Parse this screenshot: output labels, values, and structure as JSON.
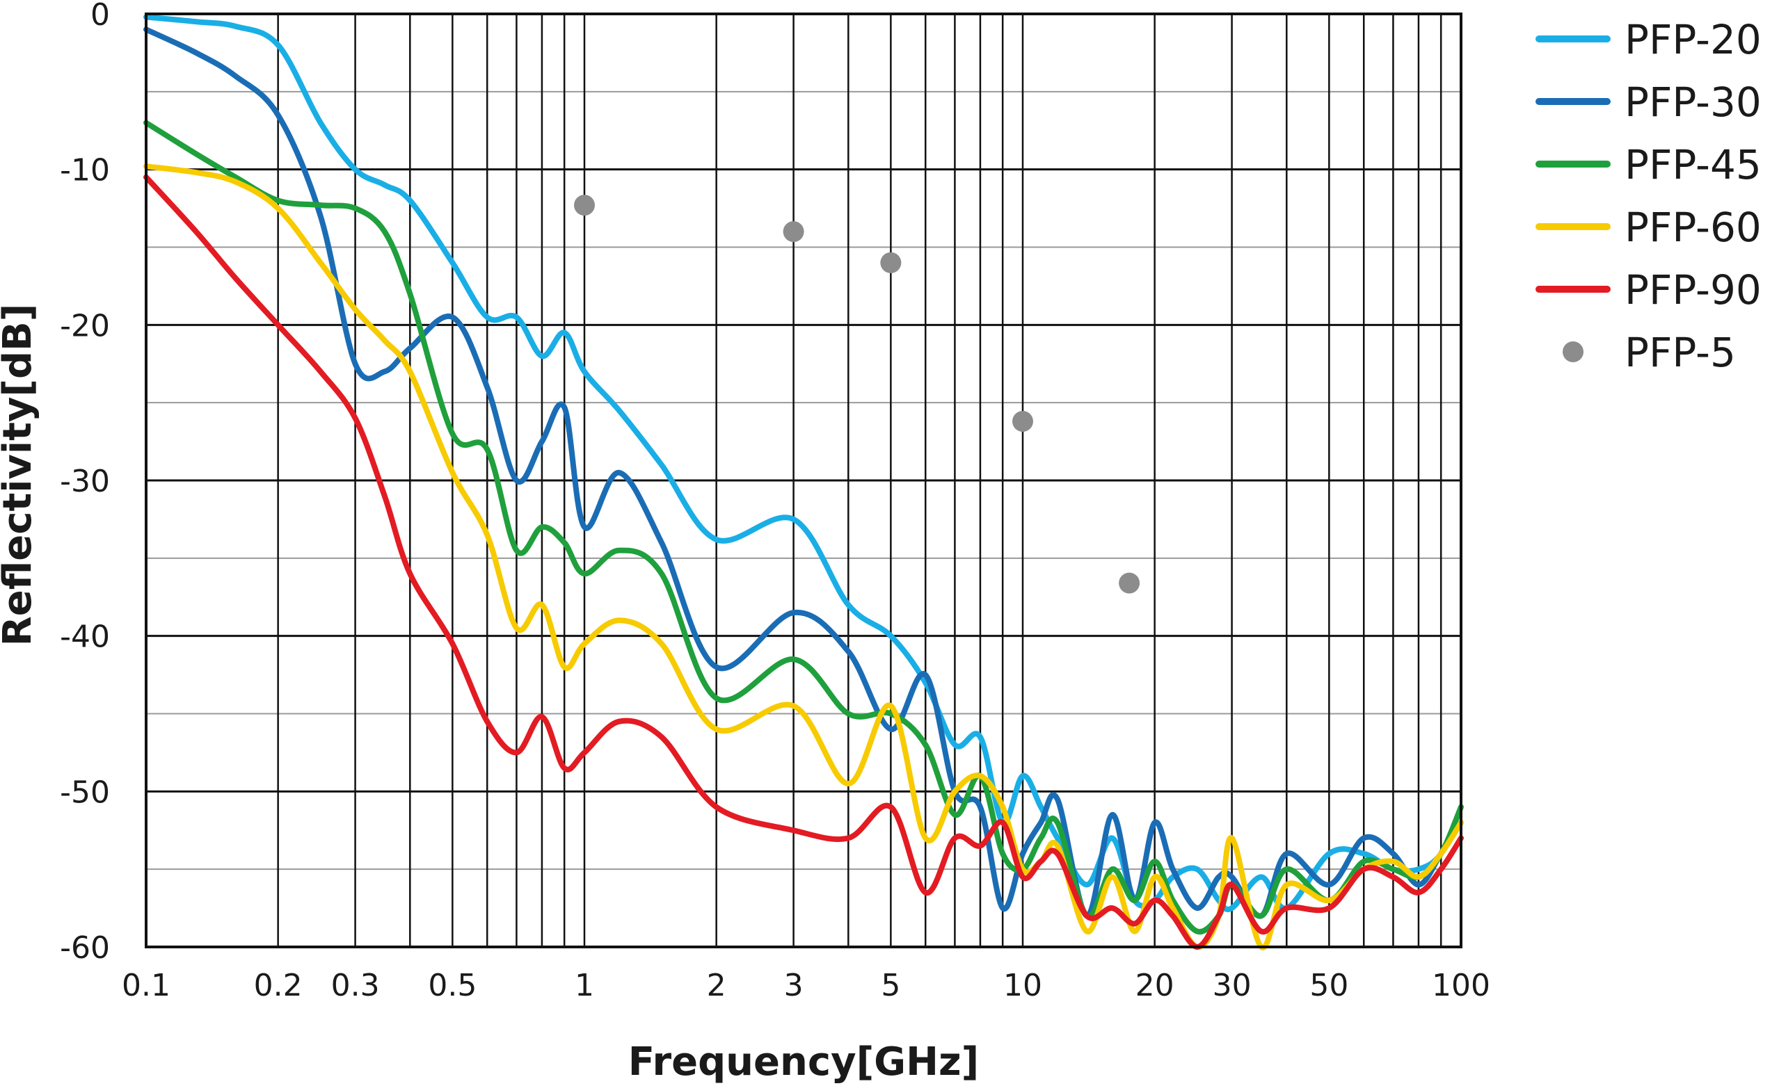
{
  "chart_data": {
    "type": "line",
    "xlabel": "Frequency[GHz]",
    "ylabel": "Reflectivity[dB]",
    "x_scale": "log",
    "xlim": [
      0.1,
      100
    ],
    "ylim": [
      -60,
      0
    ],
    "grid": true,
    "legend_position": "right",
    "x_tick_labels": [
      "0.1",
      "0.2",
      "0.3",
      "0.5",
      "1",
      "2",
      "3",
      "5",
      "10",
      "20",
      "30",
      "50",
      "100"
    ],
    "y_tick_labels": [
      "0",
      "-10",
      "-20",
      "-30",
      "-40",
      "-50",
      "-60"
    ],
    "series": [
      {
        "name": "PFP-20",
        "color": "#1aaee6",
        "style": "line",
        "x": [
          0.1,
          0.13,
          0.16,
          0.2,
          0.25,
          0.3,
          0.35,
          0.4,
          0.5,
          0.6,
          0.7,
          0.8,
          0.9,
          1,
          1.2,
          1.5,
          2,
          3,
          4,
          5,
          6,
          7,
          8,
          9,
          10,
          11,
          12,
          14,
          16,
          18,
          20,
          22,
          25,
          28,
          30,
          35,
          40,
          50,
          60,
          70,
          80,
          90,
          100
        ],
        "y": [
          -0.2,
          -0.5,
          -0.8,
          -2,
          -7,
          -10,
          -11,
          -12,
          -16,
          -19.5,
          -19.5,
          -22,
          -20.5,
          -23,
          -25.5,
          -29,
          -33.8,
          -32.5,
          -38,
          -40,
          -43,
          -47,
          -46.5,
          -52,
          -49,
          -51,
          -53,
          -56,
          -53,
          -57,
          -57,
          -55.5,
          -55,
          -57,
          -57.5,
          -55.5,
          -57.5,
          -54,
          -54,
          -55,
          -55,
          -54,
          -51
        ]
      },
      {
        "name": "PFP-30",
        "color": "#1a6db5",
        "style": "line",
        "x": [
          0.1,
          0.13,
          0.16,
          0.2,
          0.25,
          0.3,
          0.35,
          0.4,
          0.5,
          0.6,
          0.7,
          0.8,
          0.9,
          1,
          1.2,
          1.5,
          2,
          3,
          4,
          5,
          6,
          7,
          8,
          9,
          10,
          11,
          12,
          14,
          16,
          18,
          20,
          22,
          25,
          28,
          30,
          35,
          40,
          50,
          60,
          70,
          80,
          90,
          100
        ],
        "y": [
          -1,
          -2.5,
          -4,
          -6.5,
          -13,
          -22.5,
          -23,
          -21.5,
          -19.5,
          -24,
          -30,
          -27.5,
          -25.3,
          -33,
          -29.5,
          -34,
          -42,
          -38.5,
          -41,
          -46,
          -42.5,
          -50,
          -51,
          -57.5,
          -54,
          -52,
          -50.5,
          -58,
          -51.5,
          -57,
          -52,
          -55,
          -57.5,
          -55.5,
          -55.5,
          -58,
          -54,
          -56,
          -53,
          -54,
          -56,
          -54,
          -52
        ]
      },
      {
        "name": "PFP-45",
        "color": "#1fa03c",
        "style": "line",
        "x": [
          0.1,
          0.13,
          0.16,
          0.2,
          0.25,
          0.3,
          0.35,
          0.4,
          0.5,
          0.6,
          0.7,
          0.8,
          0.9,
          1,
          1.2,
          1.5,
          2,
          3,
          4,
          5,
          6,
          7,
          8,
          9,
          10,
          11,
          12,
          14,
          16,
          18,
          20,
          22,
          25,
          28,
          30,
          35,
          40,
          50,
          60,
          70,
          80,
          90,
          100
        ],
        "y": [
          -7,
          -9,
          -10.5,
          -12,
          -12.3,
          -12.5,
          -14,
          -18,
          -27,
          -28,
          -34.5,
          -33,
          -34,
          -36,
          -34.5,
          -36,
          -44,
          -41.5,
          -45,
          -45,
          -47,
          -51.5,
          -49,
          -54,
          -55,
          -53,
          -52,
          -58,
          -55,
          -57,
          -54.5,
          -57,
          -59,
          -58,
          -56,
          -58,
          -55,
          -57,
          -54.5,
          -55,
          -55.5,
          -54,
          -51
        ]
      },
      {
        "name": "PFP-60",
        "color": "#f7cb00",
        "style": "line",
        "x": [
          0.1,
          0.13,
          0.16,
          0.2,
          0.25,
          0.3,
          0.35,
          0.4,
          0.5,
          0.6,
          0.7,
          0.8,
          0.9,
          1,
          1.2,
          1.5,
          2,
          3,
          4,
          5,
          6,
          7,
          8,
          9,
          10,
          11,
          12,
          14,
          16,
          18,
          20,
          22,
          25,
          28,
          30,
          35,
          40,
          50,
          60,
          70,
          80,
          90,
          100
        ],
        "y": [
          -9.8,
          -10.2,
          -10.8,
          -12.5,
          -16,
          -19,
          -21,
          -23,
          -29.5,
          -33.5,
          -39.5,
          -38,
          -42,
          -40.5,
          -39,
          -40.5,
          -46,
          -44.5,
          -49.5,
          -44.5,
          -53,
          -50,
          -49,
          -51,
          -55,
          -54.5,
          -53.5,
          -59,
          -55.5,
          -59,
          -55.5,
          -57.5,
          -60,
          -58,
          -53,
          -60,
          -56,
          -57,
          -55,
          -54.5,
          -55.5,
          -54,
          -52
        ]
      },
      {
        "name": "PFP-90",
        "color": "#e31b23",
        "style": "line",
        "x": [
          0.1,
          0.13,
          0.16,
          0.2,
          0.25,
          0.3,
          0.35,
          0.4,
          0.5,
          0.6,
          0.7,
          0.8,
          0.9,
          1,
          1.2,
          1.5,
          2,
          3,
          4,
          5,
          6,
          7,
          8,
          9,
          10,
          11,
          12,
          14,
          16,
          18,
          20,
          22,
          25,
          28,
          30,
          35,
          40,
          50,
          60,
          70,
          80,
          90,
          100
        ],
        "y": [
          -10.5,
          -14,
          -17,
          -20,
          -23,
          -26,
          -31,
          -36,
          -40.5,
          -45.5,
          -47.5,
          -45.2,
          -48.5,
          -47.5,
          -45.5,
          -46.5,
          -51,
          -52.5,
          -53,
          -51,
          -56.5,
          -53,
          -53.5,
          -52,
          -55.5,
          -54.5,
          -54,
          -58,
          -57.5,
          -58.5,
          -57,
          -58,
          -60,
          -58,
          -56,
          -59,
          -57.5,
          -57.5,
          -55,
          -55.5,
          -56.5,
          -55,
          -53
        ]
      },
      {
        "name": "PFP-5",
        "color": "#8c8c8c",
        "style": "markers",
        "x": [
          1,
          3,
          5,
          10,
          17.5
        ],
        "y": [
          -12.3,
          -14,
          -16,
          -26.2,
          -36.6
        ]
      }
    ]
  }
}
